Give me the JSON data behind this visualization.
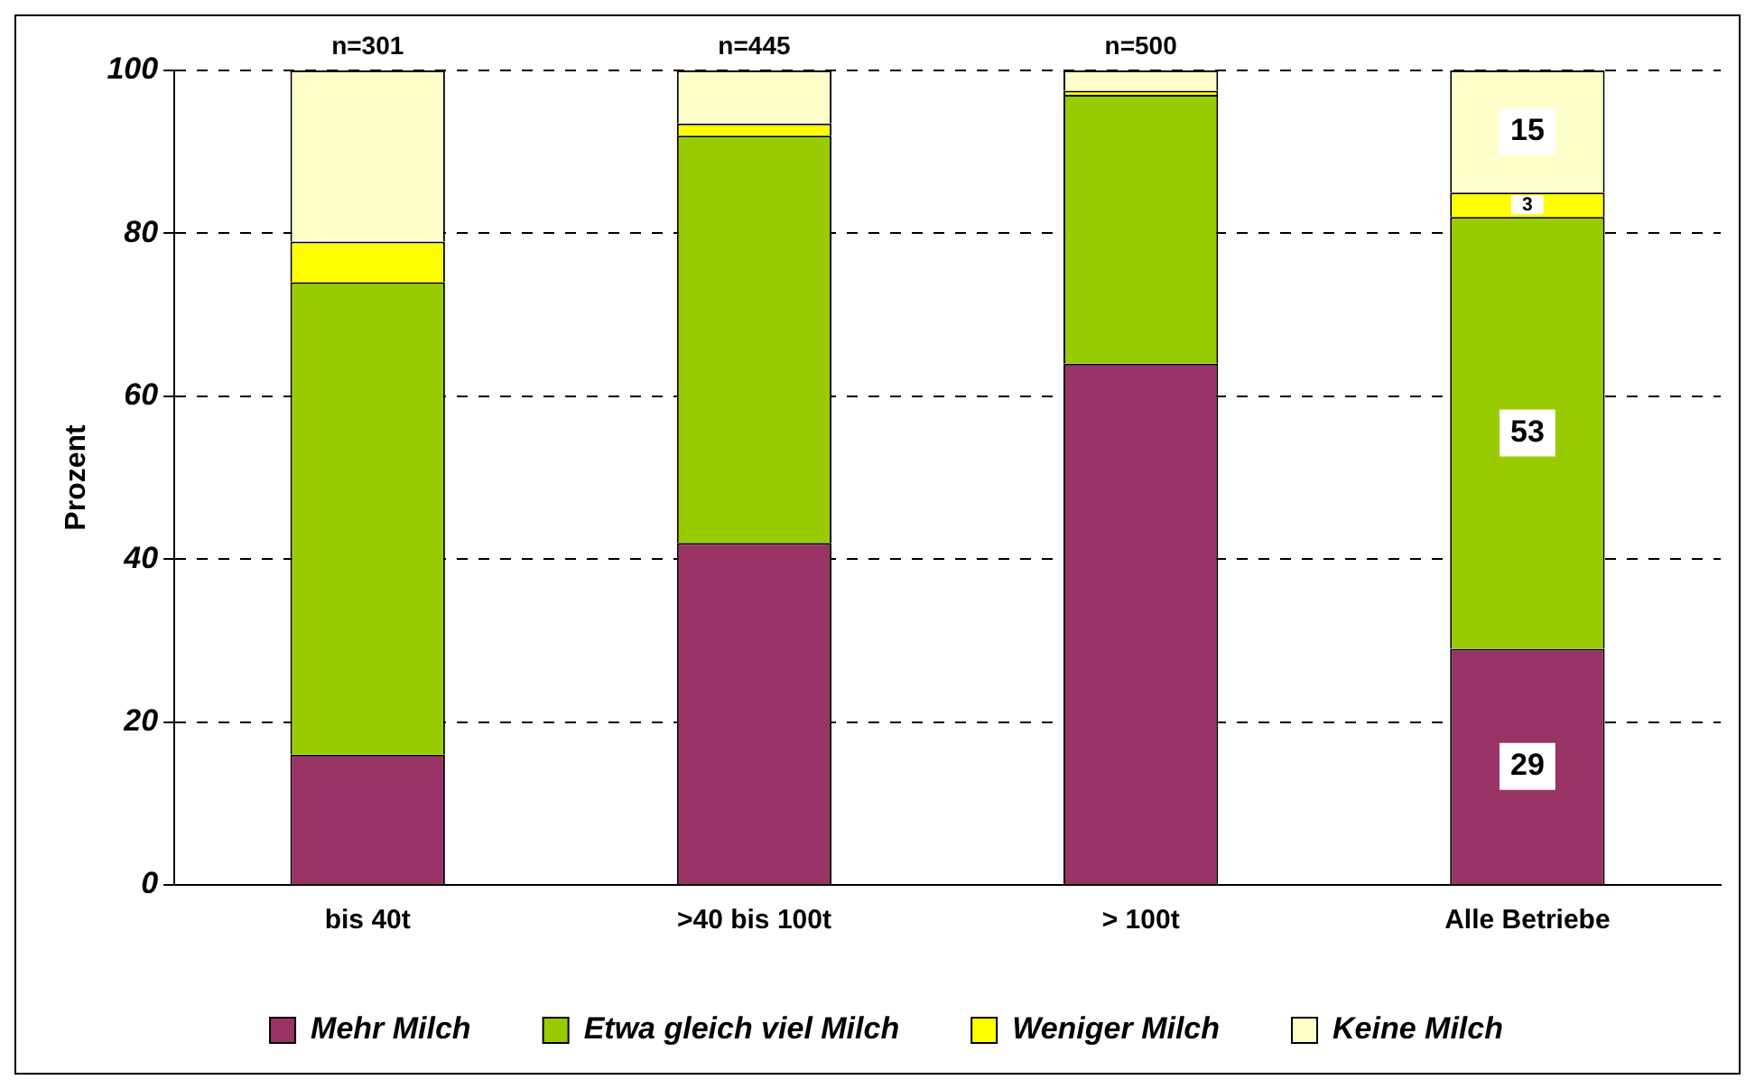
{
  "chart_data": {
    "type": "bar",
    "stacked": true,
    "ylabel": "Prozent",
    "categories": [
      "bis 40t",
      ">40 bis 100t",
      "> 100t",
      "Alle Betriebe"
    ],
    "series": [
      {
        "name": "Mehr Milch",
        "color": "#993366",
        "values": [
          16,
          42,
          64,
          29
        ],
        "value_labels": [
          null,
          null,
          null,
          "29"
        ]
      },
      {
        "name": "Etwa gleich viel Milch",
        "color": "#99cc00",
        "values": [
          58,
          50,
          33,
          53
        ],
        "value_labels": [
          null,
          null,
          null,
          "53"
        ]
      },
      {
        "name": "Weniger Milch",
        "color": "#ffff00",
        "values": [
          5,
          1.5,
          0.5,
          3
        ],
        "value_labels": [
          null,
          null,
          null,
          "3"
        ]
      },
      {
        "name": "Keine Milch",
        "color": "#ffffcc",
        "values": [
          21,
          6.5,
          2.5,
          15
        ],
        "value_labels": [
          null,
          null,
          null,
          "15"
        ]
      }
    ],
    "ylim": [
      0,
      100
    ],
    "yticks": [
      0,
      20,
      40,
      60,
      80,
      100
    ],
    "grid": "y",
    "legend": "bottom",
    "annotations": [
      {
        "text": "n=301",
        "x": "bis 40t",
        "y": 100
      },
      {
        "text": "n=445",
        "x": ">40 bis 100t",
        "y": 100
      },
      {
        "text": "n=500",
        "x": "> 100t",
        "y": 100
      }
    ]
  }
}
